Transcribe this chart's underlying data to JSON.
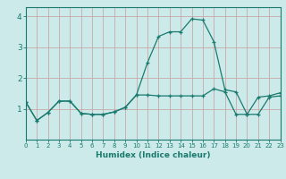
{
  "xlabel": "Humidex (Indice chaleur)",
  "ylabel": "",
  "bg_color": "#cceaea",
  "grid_color": "#c8a8a8",
  "line_color": "#1a7a6e",
  "x_values": [
    0,
    1,
    2,
    3,
    4,
    5,
    6,
    7,
    8,
    9,
    10,
    11,
    12,
    13,
    14,
    15,
    16,
    17,
    18,
    19,
    20,
    21,
    22,
    23
  ],
  "series1": [
    1.22,
    0.62,
    0.88,
    1.25,
    1.25,
    0.85,
    0.82,
    0.82,
    0.9,
    1.05,
    1.45,
    2.5,
    3.35,
    3.5,
    3.5,
    3.92,
    3.88,
    3.18,
    1.62,
    1.55,
    0.82,
    0.82,
    1.38,
    1.42
  ],
  "series2": [
    1.22,
    0.62,
    0.88,
    1.25,
    1.25,
    0.85,
    0.82,
    0.82,
    0.9,
    1.05,
    1.45,
    1.45,
    1.42,
    1.42,
    1.42,
    1.42,
    1.42,
    1.65,
    1.55,
    0.82,
    0.82,
    1.38,
    1.42,
    1.52
  ],
  "ylim": [
    0,
    4.3
  ],
  "xlim": [
    0,
    23
  ],
  "yticks": [
    1,
    2,
    3,
    4
  ],
  "xticks": [
    0,
    1,
    2,
    3,
    4,
    5,
    6,
    7,
    8,
    9,
    10,
    11,
    12,
    13,
    14,
    15,
    16,
    17,
    18,
    19,
    20,
    21,
    22,
    23
  ],
  "xlabel_fontsize": 6.5,
  "ytick_fontsize": 6.5,
  "xtick_fontsize": 5.0
}
